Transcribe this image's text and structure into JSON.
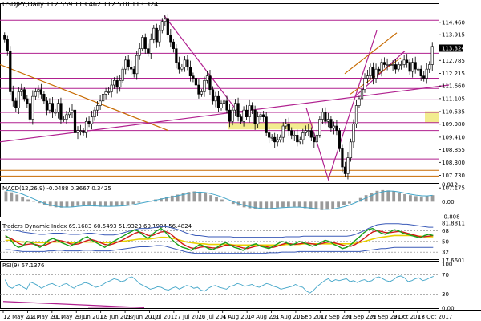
{
  "chart_data": {
    "type": "candlestick",
    "title": "USDJPY,Daily 112.559 113.462 112.510 113.324",
    "colors": {
      "grid": "#ffffff",
      "border": "#000000",
      "hline": "#b0208f",
      "trend": "#b0208f",
      "channel": "#c76a00",
      "zone": "#f2ec8e",
      "bull": "#ffffff",
      "bear": "#000000",
      "macd_signal": "#42a5c8",
      "price_label": "#000000"
    },
    "price_axis": {
      "ylim": [
        107.5,
        115.3
      ],
      "ticks": [
        "114.460",
        "113.915",
        "113.324",
        "112.785",
        "112.215",
        "111.660",
        "111.105",
        "110.535",
        "109.980",
        "109.410",
        "108.855",
        "108.300",
        "107.730",
        "107.175"
      ],
      "current": "113.324"
    },
    "x_labels": [
      "12 May 2017",
      "22 May 2017",
      "31 May 2017",
      "9 Jun 2017",
      "19 Jun 2017",
      "28 Jun 2017",
      "7 Jul 2017",
      "17 Jul 2017",
      "26 Jul 2017",
      "4 Aug 2017",
      "14 Aug 2017",
      "23 Aug 2017",
      "1 Sep 2017",
      "11 Sep 2017",
      "20 Sep 2017",
      "29 Sep 2017",
      "9 Oct 2017",
      "18 Oct 2017"
    ],
    "closes": [
      113.7,
      113.2,
      111.4,
      111.0,
      110.7,
      111.4,
      111.5,
      111.1,
      110.9,
      110.2,
      111.2,
      111.4,
      111.5,
      111.3,
      111.0,
      110.6,
      110.9,
      110.5,
      110.5,
      110.9,
      110.2,
      110.2,
      110.4,
      110.5,
      110.6,
      109.6,
      109.7,
      109.7,
      109.6,
      110.1,
      110.0,
      110.3,
      110.6,
      110.8,
      111.0,
      111.3,
      111.4,
      111.4,
      111.7,
      111.9,
      111.6,
      111.9,
      112.4,
      112.8,
      112.5,
      112.4,
      112.2,
      113.0,
      113.3,
      113.8,
      113.3,
      113.1,
      113.7,
      114.2,
      113.6,
      114.1,
      114.5,
      114.6,
      113.9,
      113.6,
      113.3,
      112.7,
      112.4,
      112.5,
      112.8,
      112.5,
      112.1,
      112.0,
      111.7,
      111.3,
      111.4,
      111.9,
      112.1,
      111.5,
      111.0,
      111.2,
      110.7,
      110.9,
      111.0,
      110.6,
      110.1,
      110.6,
      110.9,
      110.3,
      110.1,
      110.6,
      110.3,
      110.8,
      110.6,
      110.0,
      110.3,
      110.4,
      110.3,
      109.6,
      109.4,
      109.4,
      109.2,
      109.3,
      109.4,
      109.9,
      110.0,
      109.7,
      109.5,
      109.5,
      109.2,
      109.3,
      109.6,
      109.7,
      109.7,
      109.4,
      109.2,
      109.5,
      110.2,
      110.5,
      110.1,
      110.2,
      109.8,
      109.9,
      109.7,
      108.9,
      108.1,
      107.8,
      108.5,
      109.2,
      110.0,
      110.8,
      111.1,
      111.5,
      112.0,
      112.1,
      112.5,
      112.0,
      112.4,
      112.3,
      112.7,
      112.6,
      112.6,
      112.6,
      112.6,
      112.4,
      112.6,
      112.6,
      112.8,
      112.7,
      112.3,
      112.7,
      112.4,
      112.4,
      112.1,
      112.0,
      112.4,
      112.6,
      113.4
    ],
    "levels": [
      114.55,
      113.1,
      112.0,
      111.55,
      111.05,
      110.5,
      110.05,
      109.7,
      108.45,
      107.95,
      107.7
    ],
    "macd": {
      "title": "MACD(12,26,9) -0.0488 0.3667 0.3425",
      "ylim": [
        -0.8,
        1.0
      ],
      "ticks": [
        "0.912",
        "0.00",
        "-0.808"
      ],
      "hist": [
        0.55,
        0.5,
        0.38,
        0.25,
        0.12,
        0.02,
        -0.08,
        -0.18,
        -0.25,
        -0.3,
        -0.32,
        -0.3,
        -0.27,
        -0.22,
        -0.2,
        -0.22,
        -0.25,
        -0.27,
        -0.26,
        -0.24,
        -0.22,
        -0.2,
        -0.18,
        -0.12,
        -0.05,
        0.0,
        0.05,
        0.12,
        0.18,
        0.25,
        0.32,
        0.38,
        0.45,
        0.52,
        0.55,
        0.52,
        0.45,
        0.35,
        0.25,
        0.12,
        0.0,
        -0.12,
        -0.22,
        -0.3,
        -0.35,
        -0.38,
        -0.4,
        -0.38,
        -0.35,
        -0.32,
        -0.3,
        -0.28,
        -0.27,
        -0.3,
        -0.35,
        -0.38,
        -0.42,
        -0.45,
        -0.42,
        -0.38,
        -0.3,
        -0.2,
        -0.1,
        0.05,
        0.2,
        0.35,
        0.48,
        0.58,
        0.62,
        0.6,
        0.55,
        0.48,
        0.4,
        0.35,
        0.3,
        0.28,
        0.3,
        0.35
      ],
      "signal": [
        0.6,
        0.58,
        0.5,
        0.4,
        0.28,
        0.15,
        0.02,
        -0.1,
        -0.18,
        -0.24,
        -0.28,
        -0.29,
        -0.28,
        -0.25,
        -0.22,
        -0.21,
        -0.22,
        -0.24,
        -0.25,
        -0.25,
        -0.24,
        -0.22,
        -0.2,
        -0.16,
        -0.1,
        -0.04,
        0.02,
        0.08,
        0.14,
        0.2,
        0.26,
        0.32,
        0.38,
        0.44,
        0.49,
        0.51,
        0.49,
        0.43,
        0.35,
        0.25,
        0.13,
        0.01,
        -0.1,
        -0.2,
        -0.27,
        -0.32,
        -0.36,
        -0.37,
        -0.36,
        -0.34,
        -0.32,
        -0.3,
        -0.29,
        -0.29,
        -0.31,
        -0.34,
        -0.37,
        -0.4,
        -0.41,
        -0.39,
        -0.34,
        -0.27,
        -0.18,
        -0.06,
        0.07,
        0.2,
        0.33,
        0.45,
        0.53,
        0.57,
        0.56,
        0.52,
        0.46,
        0.4,
        0.35,
        0.32,
        0.31,
        0.34
      ]
    },
    "rdi": {
      "title": "Traders Dynamic Index 69.1683 60.5493 51.9323 60.1904 56.4824",
      "ylim": [
        20,
        85
      ],
      "ticks": [
        "81.8811",
        "68",
        "50",
        "32",
        "17.6601"
      ],
      "green": [
        60,
        55,
        45,
        40,
        42,
        50,
        48,
        44,
        40,
        45,
        52,
        55,
        52,
        48,
        45,
        42,
        46,
        50,
        55,
        58,
        52,
        48,
        44,
        40,
        45,
        50,
        54,
        58,
        62,
        66,
        70,
        66,
        60,
        55,
        62,
        68,
        72,
        66,
        58,
        50,
        44,
        40,
        38,
        35,
        40,
        45,
        42,
        38,
        36,
        40,
        45,
        48,
        44,
        40,
        38,
        35,
        40,
        44,
        46,
        42,
        40,
        38,
        42,
        46,
        50,
        48,
        44,
        46,
        50,
        48,
        45,
        42,
        44,
        48,
        52,
        50,
        45,
        42,
        38,
        40,
        45,
        52,
        58,
        65,
        70,
        72,
        68,
        64,
        62,
        66,
        70,
        68,
        64,
        62,
        60,
        58,
        56,
        60,
        62,
        60
      ],
      "red": [
        58,
        56,
        52,
        47,
        44,
        45,
        46,
        45,
        43,
        43,
        46,
        50,
        52,
        51,
        49,
        46,
        45,
        46,
        49,
        52,
        53,
        51,
        48,
        45,
        44,
        46,
        49,
        52,
        56,
        60,
        64,
        66,
        64,
        60,
        60,
        63,
        66,
        67,
        64,
        58,
        52,
        46,
        42,
        39,
        38,
        40,
        41,
        40,
        39,
        39,
        41,
        44,
        44,
        43,
        41,
        39,
        38,
        40,
        42,
        43,
        42,
        40,
        40,
        42,
        45,
        47,
        46,
        45,
        46,
        47,
        47,
        46,
        45,
        46,
        48,
        49,
        48,
        46,
        44,
        42,
        42,
        45,
        50,
        55,
        61,
        66,
        68,
        67,
        65,
        65,
        66,
        67,
        66,
        64,
        62,
        60,
        58,
        58,
        59,
        60
      ],
      "mid": [
        52,
        52,
        51,
        50,
        49,
        49,
        49,
        48,
        48,
        48,
        48,
        49,
        49,
        49,
        49,
        48,
        48,
        48,
        49,
        49,
        49,
        49,
        48,
        48,
        48,
        48,
        49,
        50,
        51,
        52,
        53,
        54,
        54,
        54,
        55,
        56,
        57,
        57,
        56,
        55,
        53,
        51,
        49,
        48,
        47,
        46,
        46,
        45,
        45,
        45,
        45,
        45,
        45,
        44,
        44,
        44,
        44,
        44,
        44,
        44,
        44,
        44,
        44,
        44,
        44,
        45,
        45,
        45,
        45,
        46,
        46,
        46,
        46,
        46,
        46,
        46,
        46,
        46,
        46,
        46,
        46,
        47,
        48,
        50,
        52,
        54,
        56,
        57,
        58,
        59,
        60,
        60,
        60,
        60,
        60,
        59,
        59,
        58,
        58,
        58
      ],
      "upper": [
        70,
        70,
        69,
        68,
        66,
        65,
        64,
        63,
        62,
        62,
        63,
        64,
        64,
        64,
        63,
        62,
        62,
        62,
        63,
        64,
        64,
        63,
        62,
        61,
        61,
        61,
        62,
        64,
        66,
        68,
        70,
        72,
        72,
        72,
        73,
        74,
        75,
        75,
        74,
        72,
        70,
        67,
        64,
        62,
        60,
        60,
        59,
        58,
        58,
        58,
        58,
        58,
        58,
        57,
        57,
        57,
        57,
        57,
        57,
        57,
        57,
        57,
        57,
        57,
        57,
        58,
        58,
        58,
        58,
        59,
        59,
        59,
        59,
        59,
        59,
        59,
        59,
        59,
        59,
        59,
        60,
        62,
        65,
        68,
        72,
        75,
        78,
        79,
        80,
        80,
        80,
        80,
        79,
        79,
        78,
        77,
        76,
        75,
        74,
        74
      ],
      "lower": [
        36,
        36,
        35,
        34,
        33,
        33,
        33,
        33,
        33,
        33,
        34,
        34,
        35,
        35,
        34,
        34,
        34,
        34,
        35,
        35,
        35,
        34,
        34,
        34,
        34,
        35,
        36,
        37,
        38,
        39,
        40,
        41,
        41,
        41,
        42,
        43,
        43,
        42,
        40,
        38,
        36,
        34,
        32,
        31,
        30,
        30,
        30,
        30,
        30,
        30,
        30,
        30,
        30,
        30,
        30,
        30,
        30,
        30,
        30,
        30,
        30,
        31,
        31,
        31,
        32,
        32,
        32,
        32,
        33,
        33,
        33,
        33,
        33,
        33,
        33,
        33,
        33,
        33,
        33,
        33,
        33,
        33,
        33,
        34,
        35,
        36,
        37,
        38,
        38,
        39,
        40,
        40,
        40,
        40,
        40,
        40,
        40,
        40,
        40,
        40
      ]
    },
    "rsi": {
      "title": "RSI(9) 67.1376",
      "ylim": [
        0,
        100
      ],
      "ticks": [
        "100",
        "70",
        "30",
        "0.00"
      ],
      "values": [
        60,
        45,
        42,
        48,
        50,
        44,
        40,
        55,
        52,
        48,
        42,
        46,
        50,
        52,
        48,
        45,
        50,
        52,
        46,
        42,
        48,
        50,
        54,
        52,
        48,
        44,
        46,
        50,
        55,
        58,
        62,
        60,
        56,
        58,
        64,
        66,
        60,
        52,
        48,
        44,
        40,
        42,
        45,
        44,
        40,
        38,
        42,
        45,
        40,
        44,
        48,
        46,
        42,
        44,
        38,
        36,
        42,
        46,
        48,
        44,
        42,
        40,
        46,
        48,
        52,
        50,
        46,
        48,
        50,
        46,
        44,
        48,
        52,
        50,
        46,
        44,
        40,
        42,
        44,
        46,
        50,
        46,
        44,
        36,
        32,
        38,
        46,
        52,
        58,
        62,
        56,
        60,
        58,
        60,
        62,
        56,
        58,
        54,
        58,
        60,
        56,
        58,
        64,
        66,
        62,
        58,
        56,
        60,
        66,
        68,
        64,
        56,
        58,
        62,
        64,
        58,
        60,
        64,
        67
      ]
    }
  }
}
